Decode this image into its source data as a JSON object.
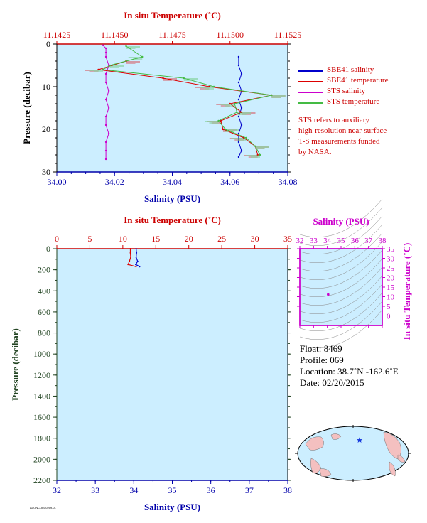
{
  "chart_data": [
    {
      "id": "upper-profile",
      "type": "line",
      "xlabel": "Salinity (PSU)",
      "x2label": "In situ Temperature (˚C)",
      "ylabel": "Pressure (decibar)",
      "xlim": [
        34.0,
        34.08
      ],
      "x2lim": [
        11.1425,
        11.1525
      ],
      "ylim": [
        0,
        30
      ],
      "xticks": [
        "34.00",
        "34.02",
        "34.04",
        "34.06",
        "34.08"
      ],
      "x2ticks": [
        "11.1425",
        "11.1450",
        "11.1475",
        "11.1500",
        "11.1525"
      ],
      "yticks": [
        "0",
        "10",
        "20",
        "30"
      ],
      "series": [
        {
          "name": "SBE41 salinity",
          "color": "#0000cc",
          "axis": "salinity",
          "pressure": [
            3,
            5,
            7,
            9,
            11,
            13,
            15,
            17,
            19,
            21,
            23,
            25,
            26.5
          ],
          "values": [
            34.063,
            34.063,
            34.064,
            34.063,
            34.064,
            34.063,
            34.064,
            34.063,
            34.064,
            34.063,
            34.063,
            34.064,
            34.063
          ]
        },
        {
          "name": "SBE41 temperature",
          "color": "#dd0000",
          "axis": "temperature",
          "pressure": [
            4,
            6,
            8,
            10,
            12,
            14,
            16,
            18,
            20,
            22,
            24,
            26
          ],
          "values": [
            11.1455,
            11.1443,
            11.1471,
            11.1491,
            11.1518,
            11.15,
            11.1505,
            11.1496,
            11.1497,
            11.1506,
            11.1511,
            11.1512
          ]
        },
        {
          "name": "STS salinity",
          "color": "#cc00cc",
          "axis": "salinity",
          "pressure": [
            0.3,
            1,
            2,
            3,
            5,
            7,
            9,
            11,
            13,
            15,
            17,
            19,
            21,
            23,
            25,
            27
          ],
          "values": [
            34.016,
            34.017,
            34.017,
            34.017,
            34.018,
            34.017,
            34.017,
            34.018,
            34.017,
            34.018,
            34.017,
            34.017,
            34.018,
            34.017,
            34.017,
            34.017
          ]
        },
        {
          "name": "STS temperature",
          "color": "#44bb44",
          "axis": "temperature",
          "pressure": [
            0.5,
            3,
            5,
            6,
            8,
            10,
            12,
            14,
            16,
            18,
            20,
            22,
            24,
            26
          ],
          "values": [
            11.1455,
            11.1462,
            11.1448,
            11.1445,
            11.148,
            11.1493,
            11.1518,
            11.1502,
            11.1503,
            11.1495,
            11.1498,
            11.1507,
            11.1511,
            11.1513
          ]
        }
      ]
    },
    {
      "id": "full-profile",
      "type": "line",
      "xlabel": "Salinity (PSU)",
      "x2label": "In situ Temperature (˚C)",
      "ylabel": "Pressure (decibar)",
      "xlim": [
        32,
        38
      ],
      "x2lim": [
        0,
        35
      ],
      "ylim": [
        0,
        2200
      ],
      "xticks": [
        "32",
        "33",
        "34",
        "35",
        "36",
        "37",
        "38"
      ],
      "x2ticks": [
        "0",
        "5",
        "10",
        "15",
        "20",
        "25",
        "30",
        "35"
      ],
      "yticks": [
        "0",
        "200",
        "400",
        "600",
        "800",
        "1000",
        "1200",
        "1400",
        "1600",
        "1800",
        "2000",
        "2200"
      ],
      "series": [
        {
          "name": "salinity",
          "color": "#0000cc",
          "pressure": [
            0,
            40,
            80,
            120,
            150,
            170
          ],
          "values": [
            34.06,
            34.07,
            34.06,
            34.1,
            34.05,
            34.15
          ]
        },
        {
          "name": "temperature",
          "color": "#dd0000",
          "pressure": [
            0,
            40,
            80,
            120,
            150,
            170
          ],
          "values": [
            11.15,
            11.15,
            11.2,
            11.0,
            10.8,
            12.0
          ]
        }
      ]
    },
    {
      "id": "ts-diagram",
      "type": "scatter",
      "xlabel": "Salinity (PSU)",
      "ylabel": "In situ Temperature (˚C)",
      "xlim": [
        32,
        38
      ],
      "ylim": [
        -5,
        35
      ],
      "xticks": [
        "32",
        "33",
        "34",
        "35",
        "36",
        "37",
        "38"
      ],
      "yticks": [
        "35",
        "30",
        "25",
        "20",
        "15",
        "10",
        "5",
        "0"
      ],
      "points": [
        {
          "x": 34.06,
          "y": 11.15
        }
      ]
    }
  ],
  "legend": {
    "entries": [
      {
        "label": "SBE41 salinity",
        "color": "#0000cc"
      },
      {
        "label": "SBE41 temperature",
        "color": "#dd0000"
      },
      {
        "label": "STS salinity",
        "color": "#cc00cc"
      },
      {
        "label": "STS temperature",
        "color": "#44bb44"
      }
    ]
  },
  "note": {
    "lines": [
      "STS refers to auxiliary",
      "high-resolution near-surface",
      "T-S measurements funded",
      "by NASA."
    ]
  },
  "info": {
    "float": "Float:  8469",
    "profile": "Profile:  069",
    "location": "Location:  38.7˚N  -162.6˚E",
    "date": "Date:  02/20/2015"
  },
  "footer": {
    "code": "AO-INCOIS-0259-01"
  },
  "colors": {
    "plot_bg": "#cceeff",
    "temp_axis": "#cc0000",
    "sal_axis": "#0000aa",
    "pressure_axis": "#224422",
    "ts_axis": "#cc00cc",
    "map_land": "#f4c0c0",
    "map_ocean": "#cceeff"
  },
  "map": {
    "marker": "star"
  }
}
